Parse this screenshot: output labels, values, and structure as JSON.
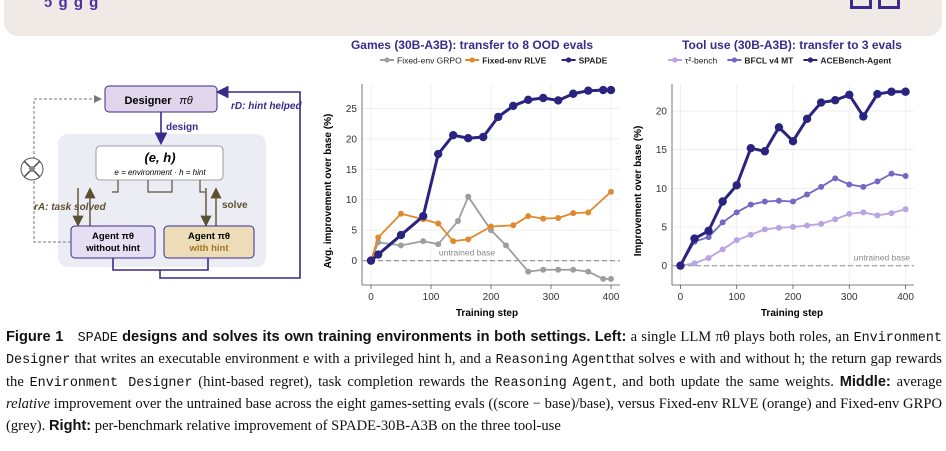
{
  "banner": {
    "fragment": "ɔ  ɡ  ɡ  ɡ"
  },
  "diagram": {
    "designer_label": "Designer",
    "designer_policy": "πθ",
    "design_edge": "design",
    "reward_hint": "rD: hint helped",
    "env_title": "(e, h)",
    "env_desc": "e = environment · h = hint",
    "reward_task": "rA: task solved",
    "solve_label": "solve",
    "agent_left_l1": "Agent  πθ",
    "agent_left_l2": "without hint",
    "agent_right_l1": "Agent  πθ",
    "agent_right_l2": "with hint",
    "colors": {
      "designer": "#e1d5ec",
      "agent_left": "#e6def2",
      "agent_right": "#ecdcb8",
      "accent": "#3b2a8c",
      "panel": "#ecedf4"
    }
  },
  "chart_data": [
    {
      "type": "line",
      "title": "Games (30B-A3B): transfer to 8 OOD evals",
      "xlabel": "Training step",
      "ylabel": "Avg. improvement over base (%)",
      "xlim": [
        -15,
        415
      ],
      "ylim": [
        -4,
        29
      ],
      "xticks": [
        0,
        100,
        200,
        300,
        400
      ],
      "yticks": [
        0,
        5,
        10,
        15,
        20,
        25
      ],
      "legend": "top-center",
      "baseline_label": "untrained base",
      "series": [
        {
          "name": "Fixed-env GRPO",
          "color": "#9e9e9e",
          "x": [
            0,
            12,
            50,
            87,
            112,
            145,
            162,
            200,
            225,
            262,
            287,
            312,
            337,
            362,
            387,
            400
          ],
          "y": [
            0,
            3,
            2.5,
            3.2,
            2.7,
            6.5,
            10.5,
            5,
            2.5,
            -1.8,
            -1.5,
            -1.5,
            -1.5,
            -1.8,
            -3,
            -3
          ]
        },
        {
          "name": "Fixed-env RLVE",
          "color": "#e08a2e",
          "x": [
            0,
            12,
            50,
            87,
            112,
            137,
            162,
            200,
            237,
            262,
            287,
            312,
            337,
            362,
            400
          ],
          "y": [
            0,
            3.8,
            7.7,
            6.8,
            6.1,
            3.2,
            3.5,
            5.6,
            5.8,
            7.3,
            6.9,
            7.0,
            7.8,
            7.9,
            11.3
          ]
        },
        {
          "name": "SPADE",
          "color": "#2a2480",
          "x": [
            0,
            12,
            50,
            87,
            112,
            137,
            162,
            187,
            212,
            237,
            262,
            287,
            312,
            337,
            362,
            387,
            400
          ],
          "y": [
            0,
            1.0,
            4.2,
            7.3,
            17.5,
            20.6,
            20.1,
            20.3,
            23.6,
            25.4,
            26.4,
            26.7,
            26.3,
            27.4,
            27.9,
            28.0,
            28.0
          ]
        }
      ]
    },
    {
      "type": "line",
      "title": "Tool use (30B-A3B): transfer to 3 evals",
      "xlabel": "Training step",
      "ylabel": "Improvement over base (%)",
      "xlim": [
        -15,
        415
      ],
      "ylim": [
        -2.5,
        23.5
      ],
      "xticks": [
        0,
        100,
        200,
        300,
        400
      ],
      "yticks": [
        0,
        5,
        10,
        15,
        20
      ],
      "legend": "top-center",
      "baseline_label": "untrained base",
      "series": [
        {
          "name": "τ²-bench",
          "color": "#b9a3e3",
          "x": [
            0,
            25,
            50,
            75,
            100,
            125,
            150,
            175,
            200,
            225,
            250,
            275,
            300,
            325,
            350,
            375,
            400
          ],
          "y": [
            0,
            0.3,
            1.0,
            2.1,
            3.3,
            4.0,
            4.7,
            4.9,
            5.0,
            5.2,
            5.4,
            6.0,
            6.7,
            6.9,
            6.5,
            6.8,
            7.3
          ]
        },
        {
          "name": "BFCL v4 MT",
          "color": "#7468c6",
          "x": [
            0,
            25,
            50,
            75,
            100,
            125,
            150,
            175,
            200,
            225,
            250,
            275,
            300,
            325,
            350,
            375,
            400
          ],
          "y": [
            0,
            3.1,
            3.7,
            5.6,
            6.9,
            7.9,
            8.3,
            8.4,
            8.3,
            9.2,
            10.2,
            11.3,
            10.5,
            10.2,
            10.9,
            11.9,
            11.6
          ]
        },
        {
          "name": "ACEBench-Agent",
          "color": "#2a2480",
          "x": [
            0,
            25,
            50,
            75,
            100,
            125,
            150,
            175,
            200,
            225,
            250,
            275,
            300,
            325,
            350,
            375,
            400
          ],
          "y": [
            0,
            3.5,
            4.5,
            8.3,
            10.4,
            15.2,
            14.8,
            17.9,
            16.1,
            19.0,
            21.1,
            21.4,
            22.1,
            19.3,
            22.2,
            22.5,
            22.5
          ]
        }
      ]
    }
  ],
  "caption": {
    "fig_label": "Figure 1",
    "name": "SPADE",
    "headline": "designs and solves its own training environments in both settings.",
    "left_label": "Left:",
    "p1": "a single LLM πθ plays both roles, an",
    "env_designer": "Environment Designer",
    "p2": "that writes an executable environment e with a privileged hint h, and a",
    "reasoning": "Reasoning",
    "agent_word": "Agent",
    "p3": "that solves e with and without h; the return gap rewards the",
    "p4": "(hint-based regret), task completion rewards the",
    "p5": ", and both update the same weights.",
    "middle_label": "Middle:",
    "p6": "average",
    "relative": "relative",
    "p7": "improvement over the untrained base across the eight games-setting evals ((score − base)/base), versus Fixed-env RLVE (orange) and Fixed-env GRPO (grey).",
    "right_label": "Right:",
    "p8": "per-benchmark relative improvement of SPADE-30B-A3B on the three tool-use"
  }
}
